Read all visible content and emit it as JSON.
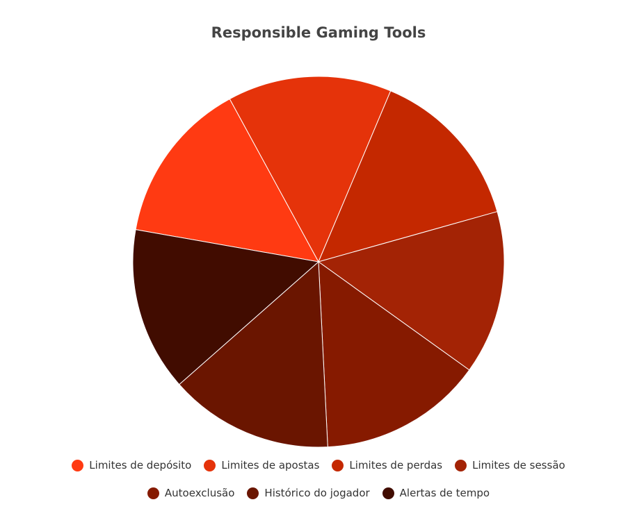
{
  "chart_data": {
    "type": "pie",
    "title": "Responsible Gaming Tools",
    "categories": [
      "Limites de depósito",
      "Limites de apostas",
      "Limites de perdas",
      "Limites de sessão",
      "Autoexclusão",
      "Histórico do jogador",
      "Alertas de tempo"
    ],
    "values": [
      14.29,
      14.29,
      14.29,
      14.29,
      14.29,
      14.29,
      14.29
    ],
    "colors": [
      "#ff3a12",
      "#e5330a",
      "#c42800",
      "#a32305",
      "#861a00",
      "#6a1500",
      "#410c00"
    ],
    "legend": "bottom"
  }
}
